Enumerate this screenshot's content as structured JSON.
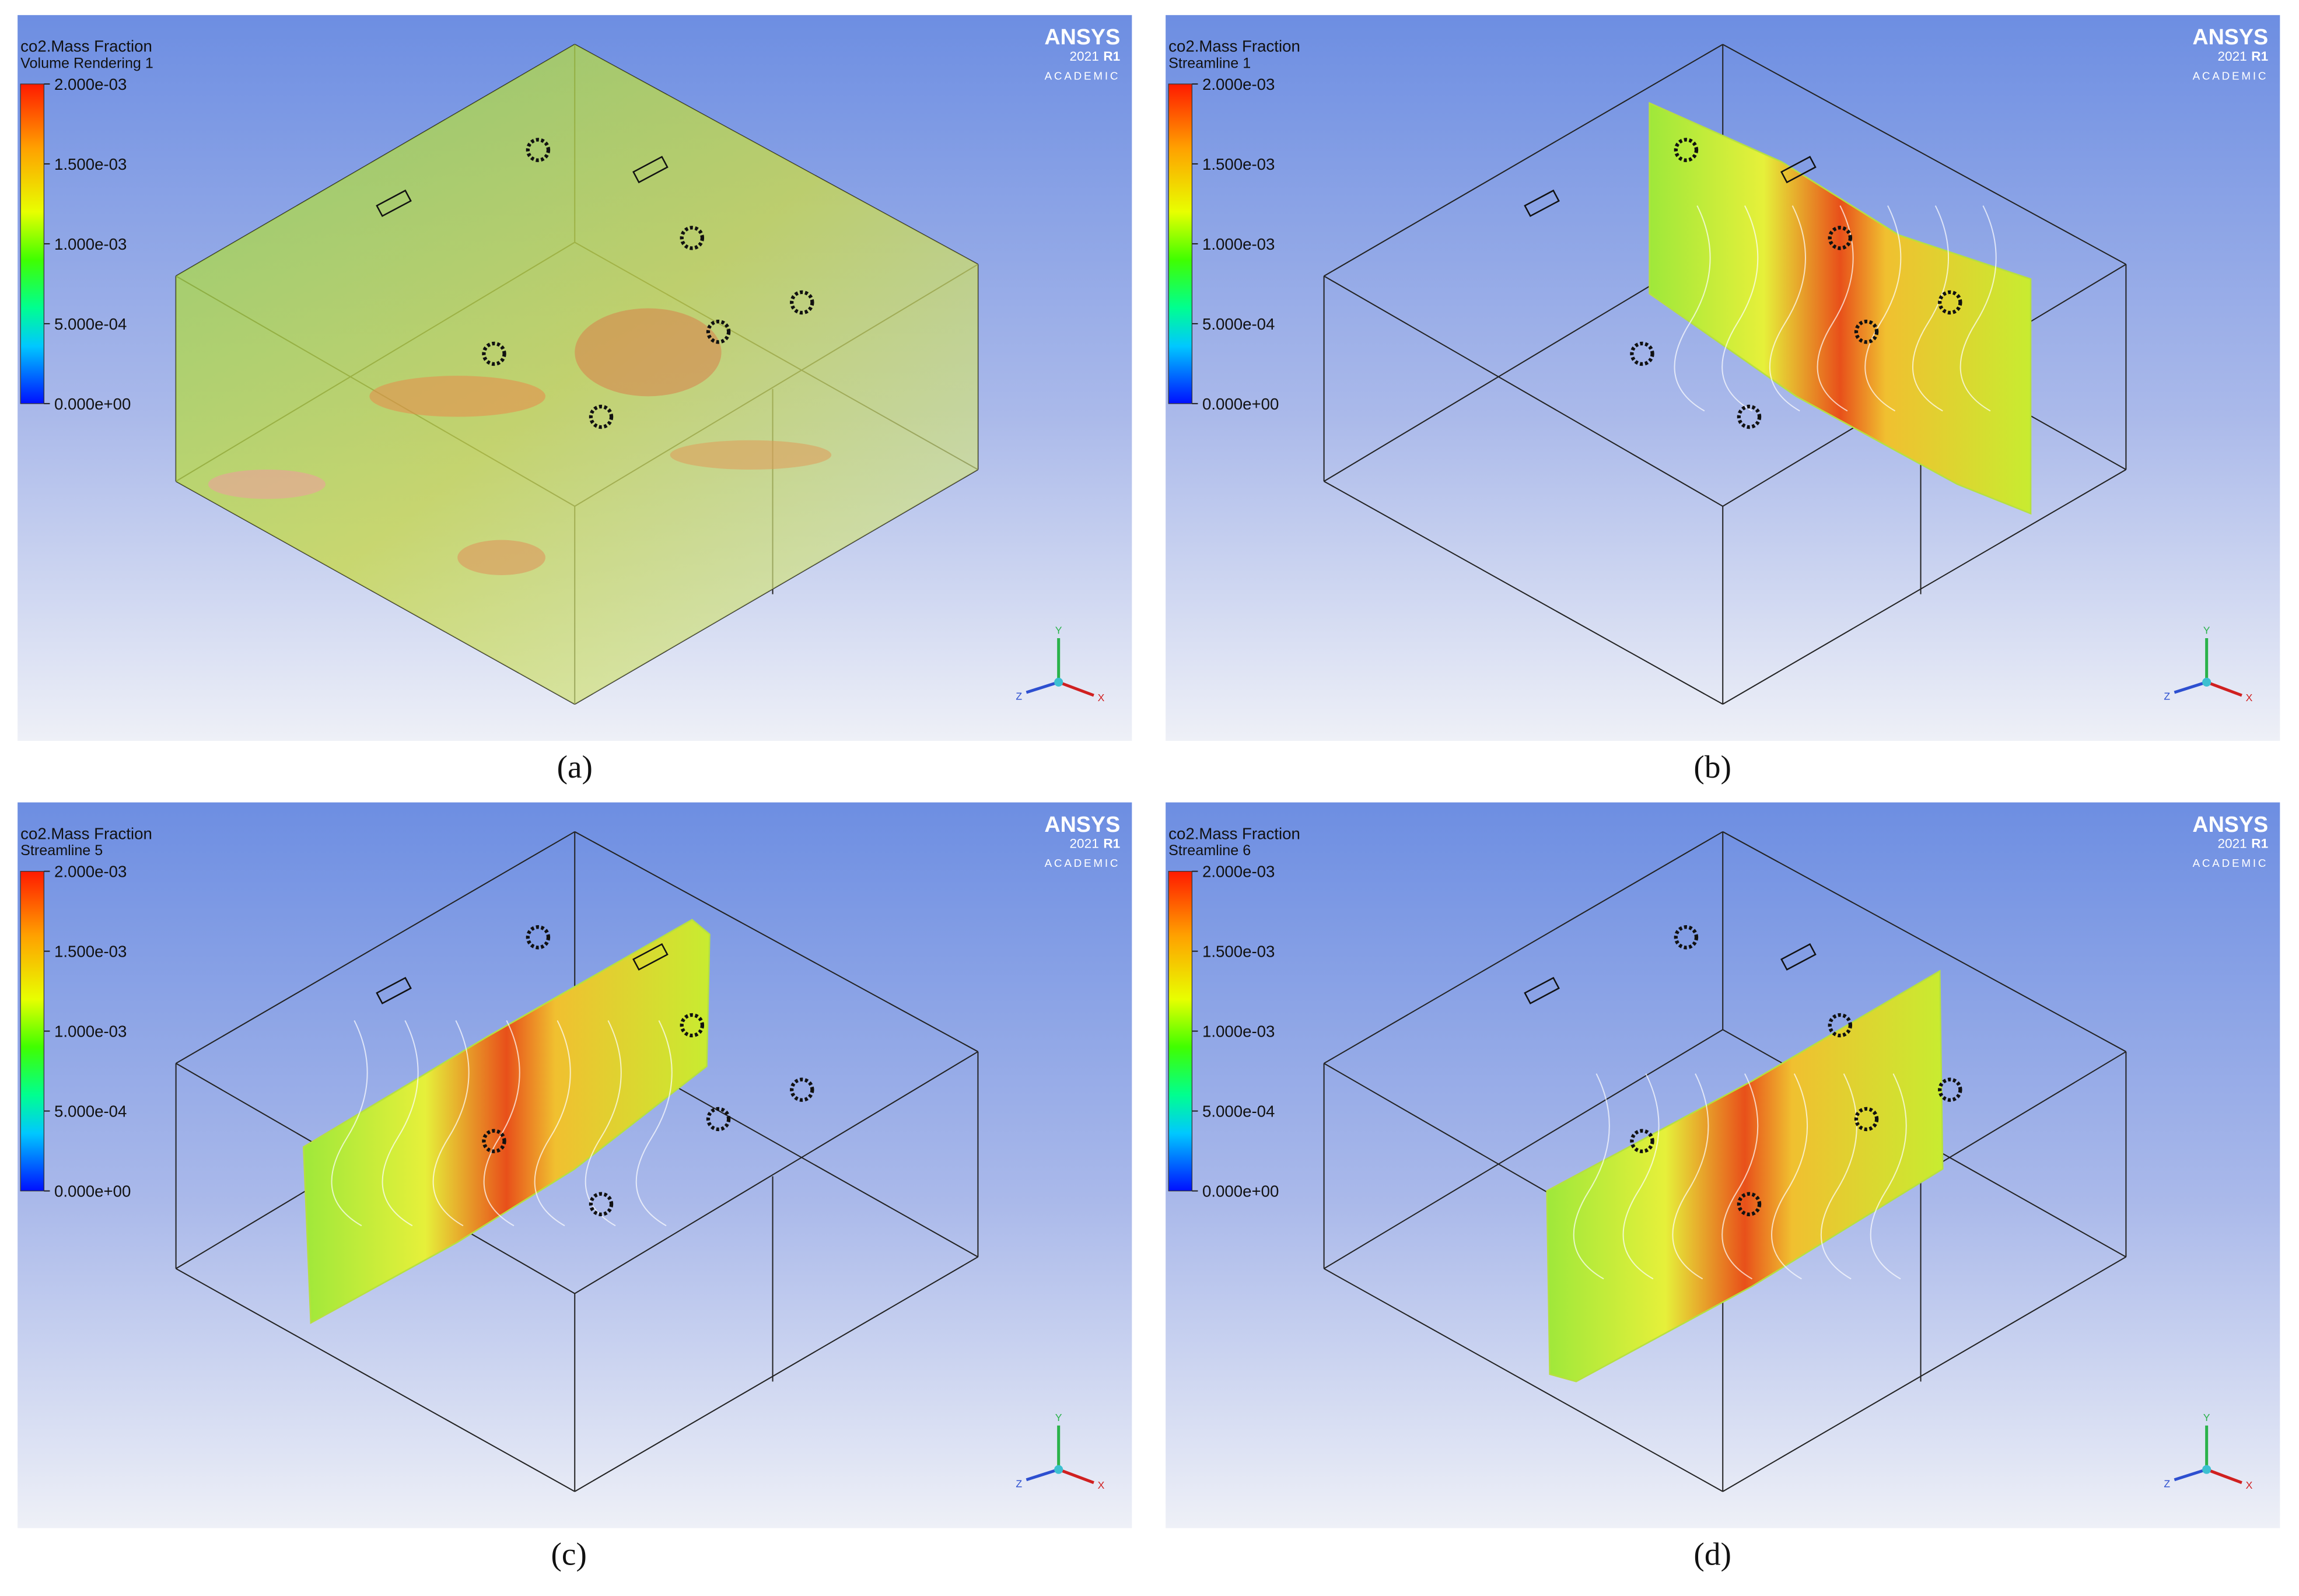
{
  "panels": [
    {
      "title": "co2.Mass Fraction",
      "subtitle": "Volume Rendering 1",
      "legend_labels": [
        "2.000e-03",
        "1.500e-03",
        "1.000e-03",
        "5.000e-04",
        "0.000e+00"
      ],
      "brand": "ANSYS",
      "version": "2021",
      "release": "R1",
      "edition": "ACADEMIC",
      "axes": [
        "Y",
        "Z",
        "X"
      ],
      "caption": "(a)"
    },
    {
      "title": "co2.Mass Fraction",
      "subtitle": "Streamline 1",
      "legend_labels": [
        "2.000e-03",
        "1.500e-03",
        "1.000e-03",
        "5.000e-04",
        "0.000e+00"
      ],
      "brand": "ANSYS",
      "version": "2021",
      "release": "R1",
      "edition": "ACADEMIC",
      "axes": [
        "Y",
        "Z",
        "X"
      ],
      "caption": "(b)"
    },
    {
      "title": "co2.Mass Fraction",
      "subtitle": "Streamline 5",
      "legend_labels": [
        "2.000e-03",
        "1.500e-03",
        "1.000e-03",
        "5.000e-04",
        "0.000e+00"
      ],
      "brand": "ANSYS",
      "version": "2021",
      "release": "R1",
      "edition": "ACADEMIC",
      "axes": [
        "Y",
        "Z",
        "X"
      ],
      "caption": "(c)"
    },
    {
      "title": "co2.Mass Fraction",
      "subtitle": "Streamline 6",
      "legend_labels": [
        "2.000e-03",
        "1.500e-03",
        "1.000e-03",
        "5.000e-04",
        "0.000e+00"
      ],
      "brand": "ANSYS",
      "version": "2021",
      "release": "R1",
      "edition": "ACADEMIC",
      "axes": [
        "Y",
        "Z",
        "X"
      ],
      "caption": "(d)"
    }
  ]
}
